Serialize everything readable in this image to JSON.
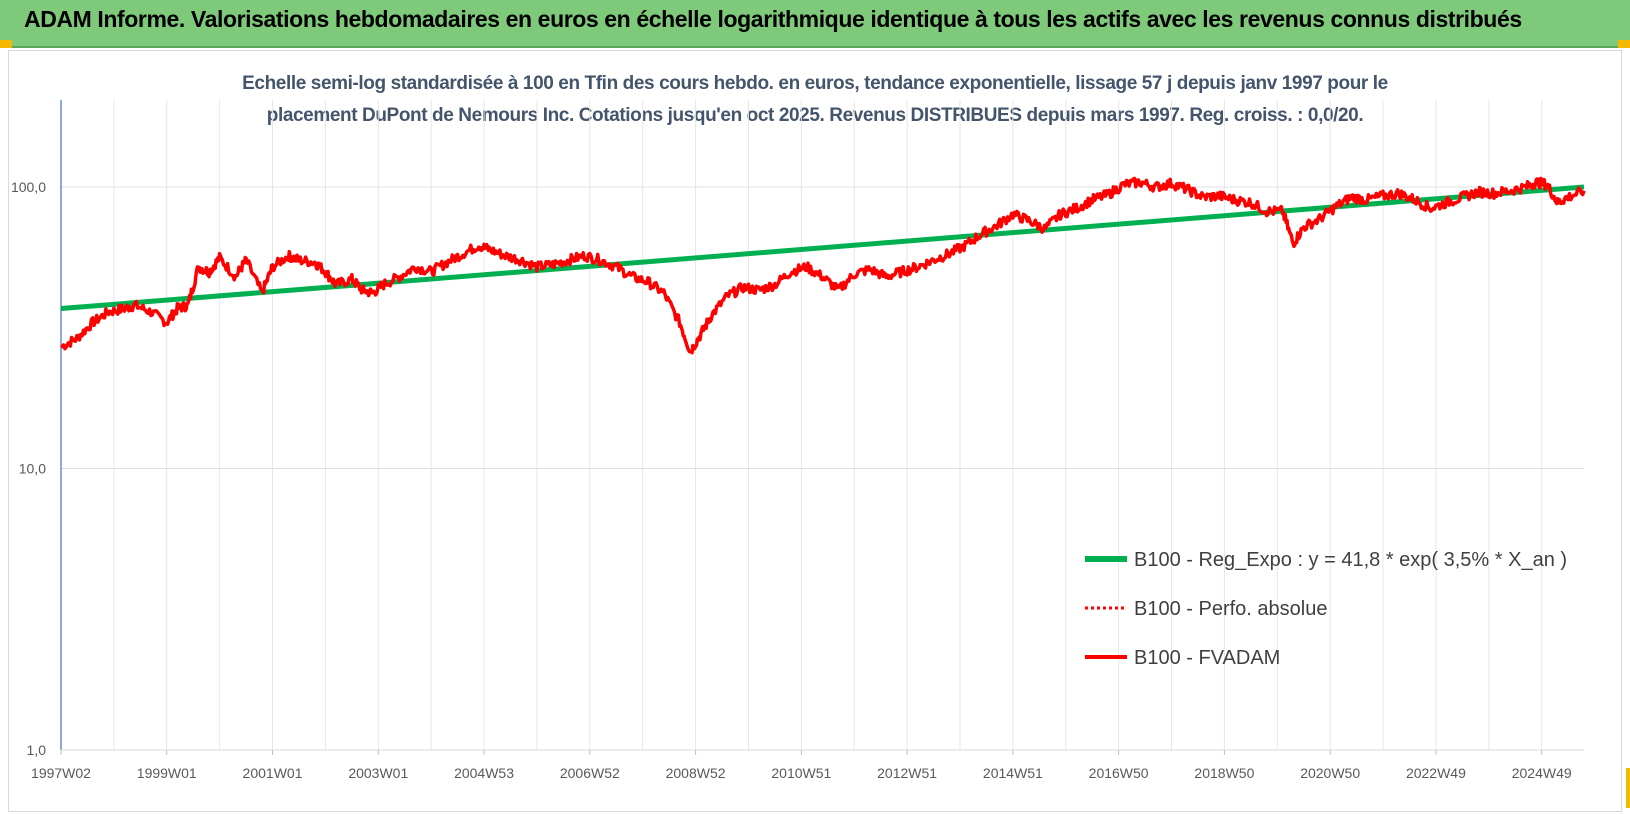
{
  "header": {
    "title": "ADAM Informe. Valorisations hebdomadaires en euros en échelle logarithmique identique à tous les actifs avec les revenus connus distribués",
    "accent_color": "#7fc97a"
  },
  "chart_data": {
    "type": "line",
    "title_line1": "Echelle semi-log standardisée à 100 en Tfin des cours hebdo. en euros, tendance exponentielle, lissage 57 j depuis janv 1997 pour le",
    "title_line2": "placement DuPont de Nemours Inc. Cotations jusqu'en oct 2025. Revenus DISTRIBUES depuis mars 1997. Reg. croiss. : 0,0/20.",
    "xlabel": "",
    "ylabel": "",
    "y_scale": "log",
    "ylim": [
      1,
      100
    ],
    "y_ticks": [
      "100,0",
      "10,0",
      "1,0"
    ],
    "y_tick_values": [
      100,
      10,
      1
    ],
    "x_range": [
      1997.0,
      2025.8
    ],
    "x_tick_labels": [
      "1997W02",
      "1999W01",
      "2001W01",
      "2003W01",
      "2004W53",
      "2006W52",
      "2008W52",
      "2010W51",
      "2012W51",
      "2014W51",
      "2016W50",
      "2018W50",
      "2020W50",
      "2022W49",
      "2024W49"
    ],
    "x_tick_values": [
      1997.0,
      1999.0,
      2001.0,
      2003.0,
      2005.0,
      2007.0,
      2009.0,
      2011.0,
      2013.0,
      2015.0,
      2017.0,
      2019.0,
      2021.0,
      2023.0,
      2025.0
    ],
    "grid": "on",
    "legend_position": "bottom-right",
    "series": [
      {
        "name": "B100 - Reg_Expo : y = 41,8 * exp( 3,5% *  X_an )",
        "color": "#00b050",
        "style": "solid",
        "x": [
          1997.0,
          2025.8
        ],
        "y": [
          37,
          100
        ]
      },
      {
        "name": "B100 - Perfo. absolue",
        "color": "#ff0000",
        "style": "dotted",
        "x": [],
        "y": []
      },
      {
        "name": "B100 - FVADAM",
        "color": "#ff0000",
        "style": "solid",
        "x": [
          1997.0,
          1997.3,
          1997.6,
          1997.9,
          1998.2,
          1998.4,
          1998.7,
          1999.0,
          1999.2,
          1999.4,
          1999.6,
          1999.8,
          2000.0,
          2000.3,
          2000.5,
          2000.8,
          2001.0,
          2001.3,
          2001.5,
          2001.8,
          2002.0,
          2002.2,
          2002.5,
          2002.7,
          2002.9,
          2003.1,
          2003.4,
          2003.7,
          2004.0,
          2004.3,
          2004.6,
          2004.9,
          2005.1,
          2005.4,
          2005.7,
          2006.0,
          2006.3,
          2006.6,
          2006.9,
          2007.2,
          2007.5,
          2007.8,
          2008.1,
          2008.4,
          2008.7,
          2008.9,
          2009.1,
          2009.3,
          2009.6,
          2009.9,
          2010.2,
          2010.5,
          2010.8,
          2011.1,
          2011.4,
          2011.7,
          2012.0,
          2012.3,
          2012.6,
          2012.9,
          2013.2,
          2013.5,
          2013.8,
          2014.1,
          2014.4,
          2014.7,
          2015.0,
          2015.3,
          2015.6,
          2015.9,
          2016.2,
          2016.5,
          2016.8,
          2017.1,
          2017.4,
          2017.7,
          2018.0,
          2018.3,
          2018.6,
          2018.9,
          2019.2,
          2019.5,
          2019.8,
          2020.1,
          2020.3,
          2020.5,
          2020.8,
          2021.1,
          2021.4,
          2021.7,
          2022.0,
          2022.3,
          2022.6,
          2022.9,
          2023.2,
          2023.5,
          2023.8,
          2024.1,
          2024.4,
          2024.7,
          2024.9,
          2025.1,
          2025.3,
          2025.5,
          2025.8
        ],
        "y": [
          27,
          29,
          33,
          36,
          37,
          38,
          36,
          33,
          37,
          38,
          52,
          50,
          56,
          48,
          55,
          42,
          52,
          57,
          55,
          54,
          50,
          45,
          47,
          43,
          42,
          45,
          48,
          52,
          50,
          54,
          58,
          62,
          60,
          57,
          55,
          52,
          53,
          55,
          57,
          55,
          52,
          48,
          46,
          42,
          33,
          26,
          30,
          35,
          41,
          44,
          43,
          45,
          50,
          52,
          48,
          43,
          49,
          51,
          48,
          50,
          52,
          55,
          58,
          62,
          68,
          73,
          80,
          76,
          71,
          80,
          84,
          90,
          94,
          102,
          104,
          100,
          103,
          98,
          92,
          93,
          90,
          88,
          82,
          82,
          63,
          72,
          77,
          85,
          92,
          90,
          93,
          95,
          90,
          84,
          88,
          92,
          96,
          95,
          97,
          100,
          104,
          102,
          88,
          92,
          97
        ]
      }
    ]
  }
}
